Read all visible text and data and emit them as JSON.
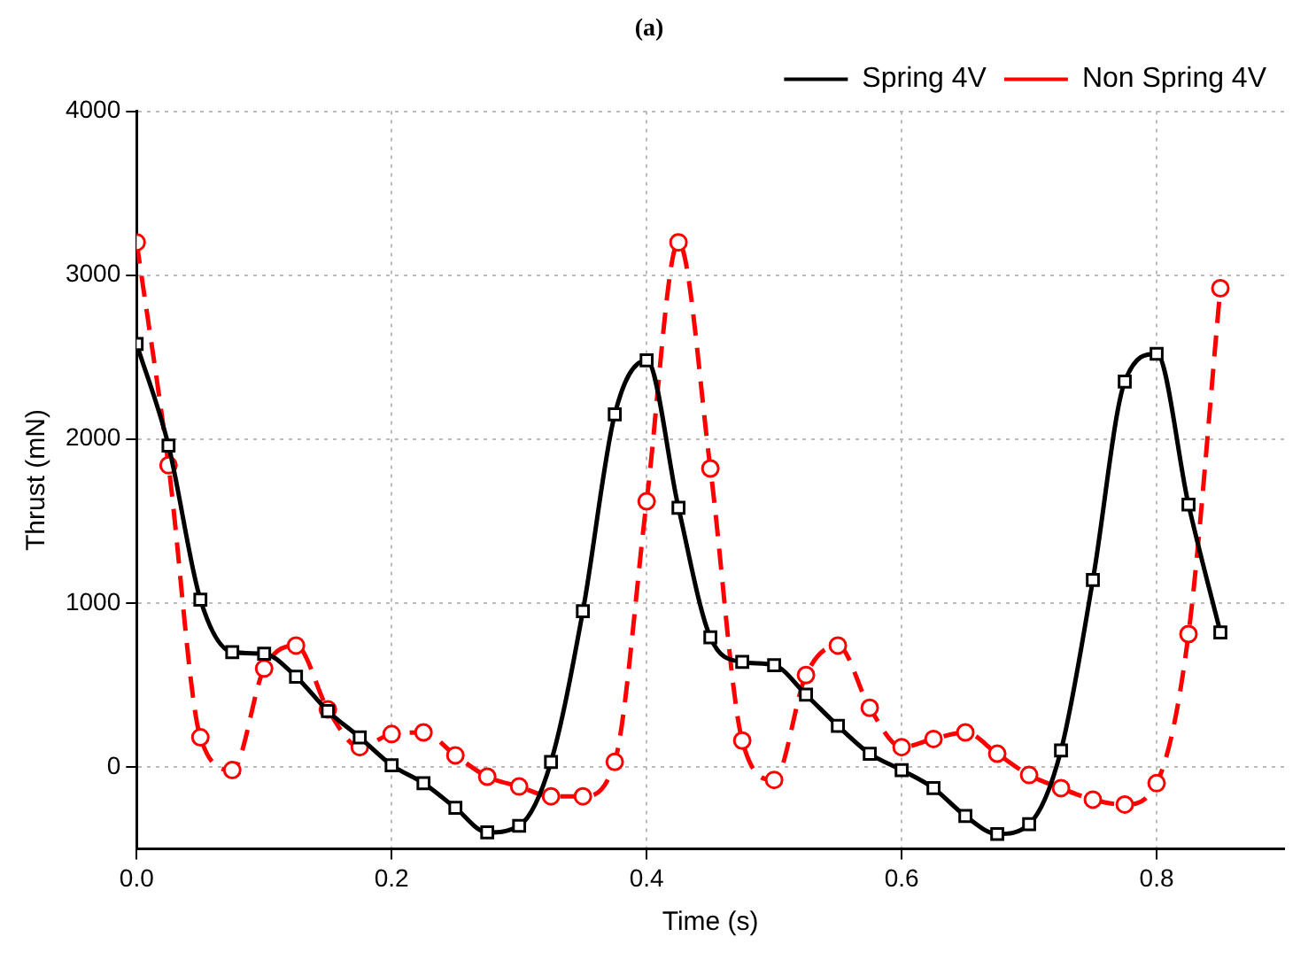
{
  "chart_data": {
    "type": "line",
    "title": "(a)",
    "xlabel": "Time (s)",
    "ylabel": "Thrust (mN)",
    "x": [
      0,
      0.025,
      0.05,
      0.075,
      0.1,
      0.125,
      0.15,
      0.175,
      0.2,
      0.225,
      0.25,
      0.275,
      0.3,
      0.325,
      0.35,
      0.375,
      0.4,
      0.425,
      0.45,
      0.475,
      0.5,
      0.525,
      0.55,
      0.575,
      0.6,
      0.625,
      0.65,
      0.675,
      0.7,
      0.725,
      0.75,
      0.775,
      0.8,
      0.825,
      0.85
    ],
    "series": [
      {
        "name": "Spring 4V",
        "color": "#000000",
        "marker": "square",
        "line_style": "solid",
        "values": [
          2580,
          1960,
          1020,
          700,
          690,
          550,
          340,
          180,
          10,
          -100,
          -250,
          -400,
          -360,
          30,
          950,
          2150,
          2480,
          1580,
          790,
          640,
          620,
          440,
          250,
          80,
          -20,
          -130,
          -300,
          -410,
          -350,
          100,
          1140,
          2350,
          2520,
          1600,
          820
        ]
      },
      {
        "name": "Non Spring 4V",
        "color": "#ff0000",
        "marker": "circle",
        "line_style": "dashed",
        "values": [
          3200,
          1840,
          180,
          -20,
          600,
          740,
          350,
          120,
          200,
          210,
          70,
          -60,
          -120,
          -180,
          -180,
          30,
          1620,
          3200,
          1820,
          160,
          -80,
          560,
          740,
          360,
          120,
          170,
          210,
          80,
          -50,
          -130,
          -200,
          -230,
          -100,
          810,
          2920
        ]
      }
    ],
    "xlim": [
      0,
      0.9
    ],
    "xticks": [
      {
        "value": 0,
        "label": "0.0"
      },
      {
        "value": 0.2,
        "label": "0.2"
      },
      {
        "value": 0.4,
        "label": "0.4"
      },
      {
        "value": 0.6,
        "label": "0.6"
      },
      {
        "value": 0.8,
        "label": "0.8"
      }
    ],
    "ylim": [
      -500,
      4000
    ],
    "yticks": [
      0,
      1000,
      2000,
      3000,
      4000
    ],
    "grid": true,
    "legend": "top right"
  }
}
